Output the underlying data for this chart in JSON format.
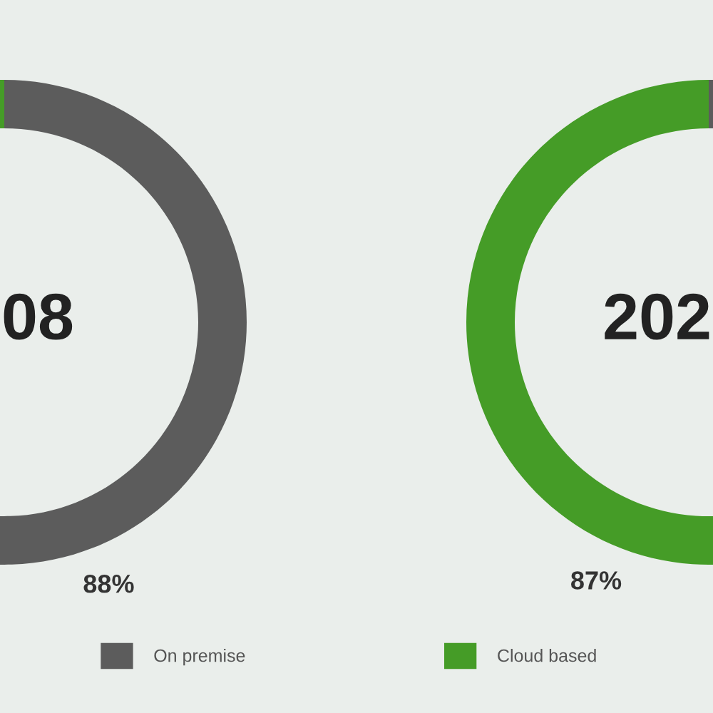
{
  "chart_data": {
    "type": "donut",
    "categories": [
      "On premise",
      "Cloud based"
    ],
    "colors": [
      "#5c5c5c",
      "#459c27"
    ],
    "series": [
      {
        "name": "08",
        "values": [
          88,
          12
        ],
        "value_labels": [
          "88%",
          null
        ]
      },
      {
        "name": "202",
        "values": [
          13,
          87
        ],
        "value_labels": [
          null,
          "87%"
        ]
      }
    ],
    "legend": "bottom"
  }
}
